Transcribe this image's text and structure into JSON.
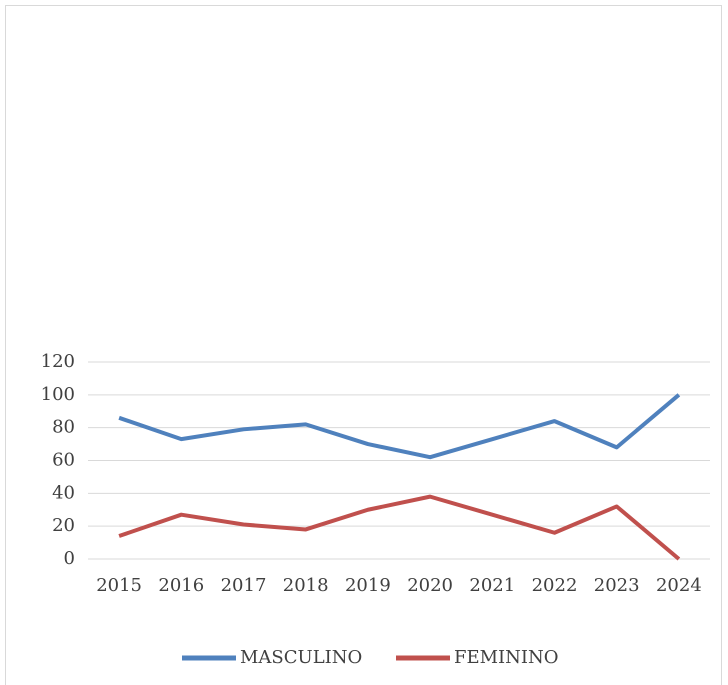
{
  "chart_data": {
    "type": "line",
    "categories": [
      "2015",
      "2016",
      "2017",
      "2018",
      "2019",
      "2020",
      "2021",
      "2022",
      "2023",
      "2024"
    ],
    "series": [
      {
        "name": "MASCULINO",
        "color": "#4f81bd",
        "values": [
          86,
          73,
          79,
          82,
          70,
          62,
          73,
          84,
          68,
          100
        ]
      },
      {
        "name": "FEMININO",
        "color": "#c0504d",
        "values": [
          14,
          27,
          21,
          18,
          30,
          38,
          27,
          16,
          32,
          0
        ]
      }
    ],
    "ylim": [
      0,
      120
    ],
    "yticks": [
      0,
      20,
      40,
      60,
      80,
      100,
      120
    ],
    "grid": true,
    "legend": "bottom"
  }
}
